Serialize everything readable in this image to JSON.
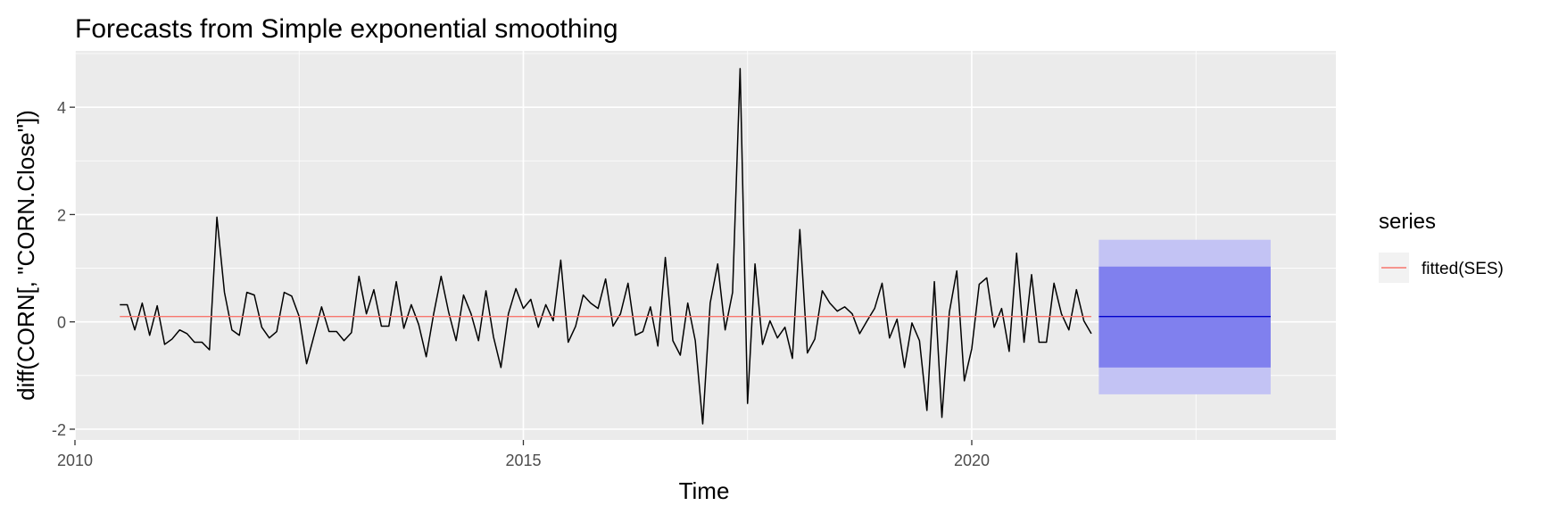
{
  "chart_data": {
    "type": "line",
    "title": "Forecasts from Simple exponential smoothing",
    "xlabel": "Time",
    "ylabel": "diff(CORN[, \"CORN.Close\"])",
    "xlim": [
      2010,
      2024.06
    ],
    "ylim": [
      -2.2,
      5.05
    ],
    "x_ticks": [
      2010,
      2015,
      2020
    ],
    "x_tick_labels": [
      "2010",
      "2015",
      "2020"
    ],
    "y_ticks": [
      -2,
      0,
      2,
      4
    ],
    "y_tick_labels": [
      "-2",
      "0",
      "2",
      "4"
    ],
    "grid": true,
    "legend": {
      "title": "series",
      "position": "right",
      "entries": [
        "fitted(SES)"
      ]
    },
    "colors": {
      "panel_bg": "#ebebeb",
      "grid_major": "#ffffff",
      "series_line": "#000000",
      "fitted_line": "#f8766d",
      "forecast_line": "#0000cc",
      "band80": "#8080ee",
      "band95": "#c3c3f4"
    },
    "series": [
      {
        "x": [
          2010.5,
          2010.583,
          2010.667,
          2010.75,
          2010.833,
          2010.917,
          2011.0,
          2011.083,
          2011.167,
          2011.25,
          2011.333,
          2011.417,
          2011.5,
          2011.583,
          2011.667,
          2011.75,
          2011.833,
          2011.917,
          2012.0,
          2012.083,
          2012.167,
          2012.25,
          2012.333,
          2012.417,
          2012.5,
          2012.583,
          2012.667,
          2012.75,
          2012.833,
          2012.917,
          2013.0,
          2013.083,
          2013.167,
          2013.25,
          2013.333,
          2013.417,
          2013.5,
          2013.583,
          2013.667,
          2013.75,
          2013.833,
          2013.917,
          2014.0,
          2014.083,
          2014.167,
          2014.25,
          2014.333,
          2014.417,
          2014.5,
          2014.583,
          2014.667,
          2014.75,
          2014.833,
          2014.917,
          2015.0,
          2015.083,
          2015.167,
          2015.25,
          2015.333,
          2015.417,
          2015.5,
          2015.583,
          2015.667,
          2015.75,
          2015.833,
          2015.917,
          2016.0,
          2016.083,
          2016.167,
          2016.25,
          2016.333,
          2016.417,
          2016.5,
          2016.583,
          2016.667,
          2016.75,
          2016.833,
          2016.917,
          2017.0,
          2017.083,
          2017.167,
          2017.25,
          2017.333,
          2017.417,
          2017.5,
          2017.583,
          2017.667,
          2017.75,
          2017.833,
          2017.917,
          2018.0,
          2018.083,
          2018.167,
          2018.25,
          2018.333,
          2018.417,
          2018.5,
          2018.583,
          2018.667,
          2018.75,
          2018.833,
          2018.917,
          2019.0,
          2019.083,
          2019.167,
          2019.25,
          2019.333,
          2019.417,
          2019.5,
          2019.583,
          2019.667,
          2019.75,
          2019.833,
          2019.917,
          2020.0,
          2020.083,
          2020.167,
          2020.25,
          2020.333,
          2020.417,
          2020.5,
          2020.583,
          2020.667,
          2020.75,
          2020.833,
          2020.917,
          2021.0,
          2021.083,
          2021.167,
          2021.25,
          2021.333
        ],
        "values": [
          0.32,
          0.32,
          -0.15,
          0.35,
          -0.25,
          0.3,
          -0.42,
          -0.32,
          -0.15,
          -0.22,
          -0.38,
          -0.38,
          -0.52,
          1.95,
          0.55,
          -0.15,
          -0.25,
          0.55,
          0.5,
          -0.1,
          -0.3,
          -0.18,
          0.55,
          0.48,
          0.1,
          -0.78,
          -0.25,
          0.28,
          -0.18,
          -0.18,
          -0.35,
          -0.2,
          0.85,
          0.15,
          0.6,
          -0.08,
          -0.08,
          0.75,
          -0.12,
          0.32,
          -0.05,
          -0.65,
          0.15,
          0.85,
          0.18,
          -0.35,
          0.5,
          0.15,
          -0.35,
          0.58,
          -0.28,
          -0.85,
          0.15,
          0.62,
          0.25,
          0.42,
          -0.1,
          0.32,
          0.02,
          1.15,
          -0.38,
          -0.08,
          0.5,
          0.35,
          0.25,
          0.8,
          -0.08,
          0.15,
          0.72,
          -0.25,
          -0.18,
          0.28,
          -0.45,
          1.2,
          -0.35,
          -0.62,
          0.35,
          -0.35,
          -1.9,
          0.35,
          1.08,
          -0.15,
          0.55,
          4.72,
          -1.52,
          1.08,
          -0.42,
          0.02,
          -0.3,
          -0.1,
          -0.68,
          1.72,
          -0.58,
          -0.32,
          0.58,
          0.35,
          0.2,
          0.28,
          0.15,
          -0.22,
          0.02,
          0.25,
          0.72,
          -0.3,
          0.05,
          -0.85,
          -0.02,
          -0.35,
          -1.65,
          0.75,
          -1.78,
          0.18,
          0.95,
          -1.1,
          -0.5,
          0.7,
          0.82,
          -0.1,
          0.25,
          -0.55,
          1.28,
          -0.38,
          0.88,
          -0.38,
          -0.38,
          0.72,
          0.15,
          -0.15,
          0.6,
          0.02,
          -0.22
        ]
      }
    ],
    "fitted": {
      "name": "fitted(SES)",
      "x_start": 2010.5,
      "x_end": 2021.333,
      "value": 0.1
    },
    "forecast": {
      "x_start": 2021.417,
      "x_end": 2023.333,
      "mean": 0.1,
      "lo80": -0.85,
      "hi80": 1.03,
      "lo95": -1.35,
      "hi95": 1.53
    }
  }
}
